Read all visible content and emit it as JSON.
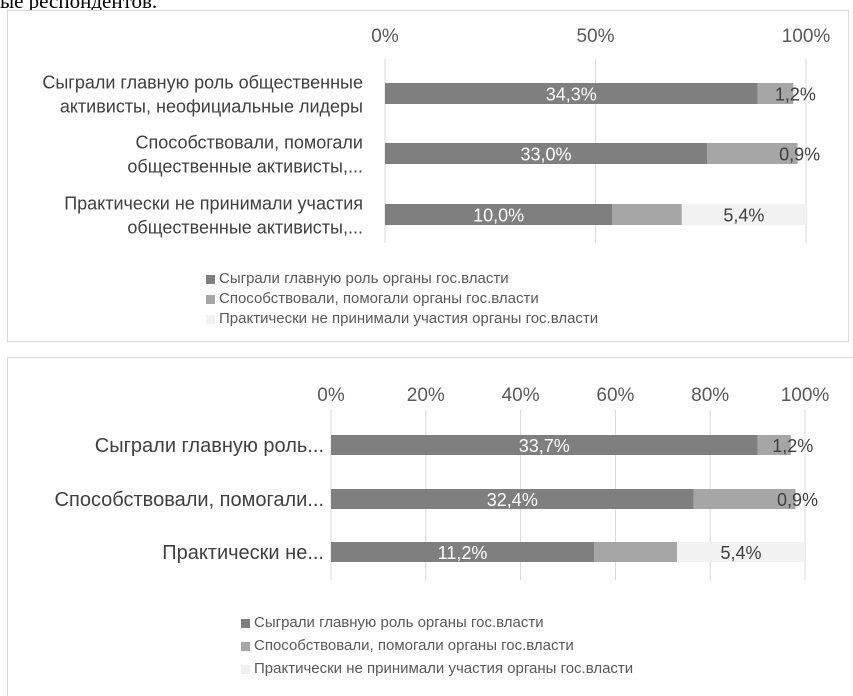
{
  "page_text": "ые респондентов.",
  "colors": {
    "main": "#7f7f7f",
    "helped": "#a6a6a6",
    "none": "#f2f2f2",
    "grid": "#d9d9d9"
  },
  "chart_data": [
    {
      "type": "bar",
      "orientation": "horizontal",
      "stacked": true,
      "axis": {
        "min": 0,
        "max": 100,
        "ticks": [
          "0%",
          "50%",
          "100%"
        ],
        "tick_values": [
          0,
          50,
          100
        ]
      },
      "categories": [
        [
          "Сыграли главную роль общественные",
          "активисты, неофициальные лидеры"
        ],
        [
          "Способствовали, помогали",
          "общественные активисты,..."
        ],
        [
          "Практически не принимали участия",
          "общественные активисты,..."
        ]
      ],
      "series": [
        {
          "name": "Сыграли главную роль органы гос.власти",
          "values": [
            88.5,
            76.5,
            54.0
          ],
          "labels": [
            "34,3%",
            "33,0%",
            "10,0%"
          ]
        },
        {
          "name": "Способствовали, помогали органы гос.власти",
          "values": [
            8.5,
            21.5,
            16.5
          ],
          "labels": [
            "",
            "",
            ""
          ]
        },
        {
          "name": "Практически не принимали участия органы гос.власти",
          "values": [
            0,
            0,
            29.5
          ],
          "labels": [
            "",
            "",
            "5,4%"
          ]
        }
      ],
      "outside_labels": [
        "1,2%",
        "0,9%",
        ""
      ],
      "grid": true,
      "legend_position": "bottom"
    },
    {
      "type": "bar",
      "orientation": "horizontal",
      "stacked": true,
      "axis": {
        "min": 0,
        "max": 100,
        "ticks": [
          "0%",
          "20%",
          "40%",
          "60%",
          "80%",
          "100%"
        ],
        "tick_values": [
          0,
          20,
          40,
          60,
          80,
          100
        ]
      },
      "categories": [
        [
          "Сыграли главную роль..."
        ],
        [
          "Способствовали, помогали..."
        ],
        [
          "Практически не..."
        ]
      ],
      "series": [
        {
          "name": "Сыграли главную роль органы гос.власти",
          "values": [
            90.0,
            76.5,
            55.5
          ],
          "labels": [
            "33,7%",
            "32,4%",
            "11,2%"
          ]
        },
        {
          "name": "Способствовали, помогали органы гос.власти",
          "values": [
            7.0,
            21.5,
            17.5
          ],
          "labels": [
            "",
            "",
            ""
          ]
        },
        {
          "name": "Практически не принимали участия органы гос.власти",
          "values": [
            0,
            0,
            27.0
          ],
          "labels": [
            "",
            "",
            "5,4%"
          ]
        }
      ],
      "outside_labels": [
        "1,2%",
        "0,9%",
        ""
      ],
      "grid": true,
      "legend_position": "bottom"
    }
  ]
}
